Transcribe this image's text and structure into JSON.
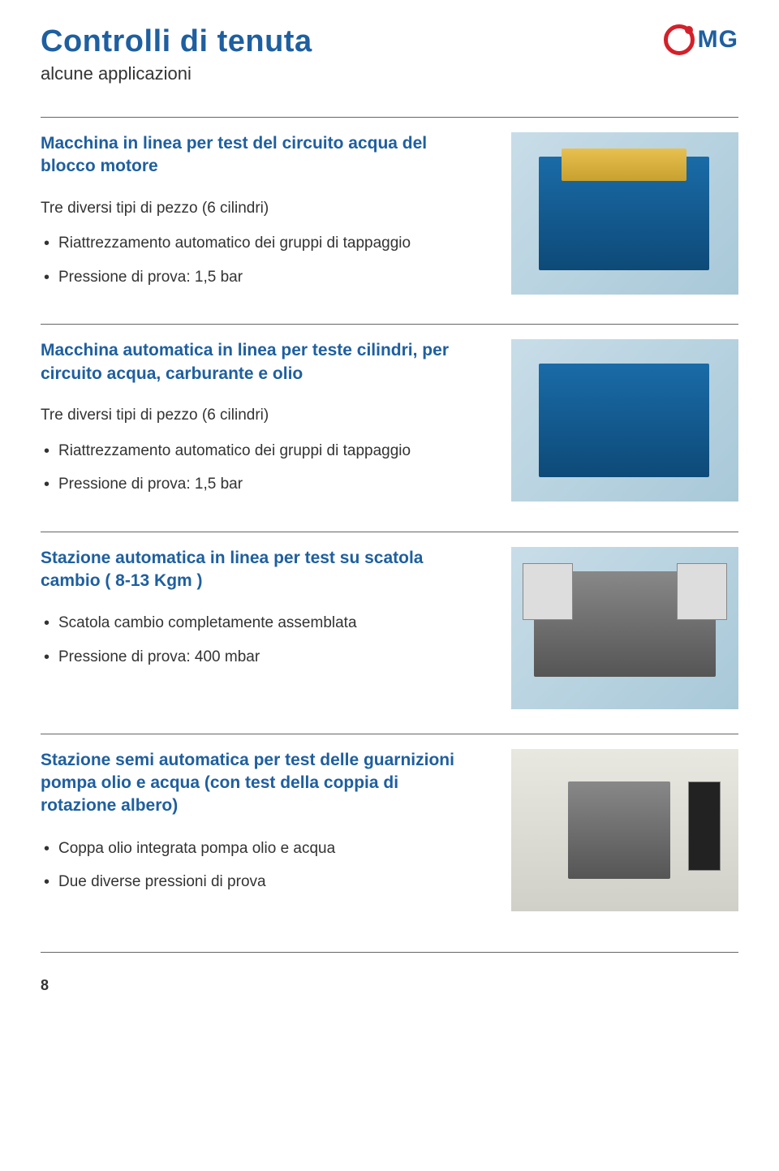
{
  "header": {
    "title": "Controlli di tenuta",
    "subtitle": "alcune applicazioni",
    "logo_text": "MG"
  },
  "sections": [
    {
      "title": "Macchina in linea per test del circuito acqua del blocco motore",
      "description": "Tre diversi tipi di pezzo (6 cilindri)",
      "bullets": [
        "Riattrezzamento automatico dei gruppi di tappaggio",
        "Pressione di prova: 1,5 bar"
      ],
      "image_style": "blue-yellow"
    },
    {
      "title": "Macchina automatica in linea per teste cilindri, per circuito acqua, carburante e olio",
      "description": "Tre diversi tipi di pezzo (6 cilindri)",
      "bullets": [
        "Riattrezzamento automatico dei gruppi di tappaggio",
        "Pressione di prova: 1,5 bar"
      ],
      "image_style": "blue"
    },
    {
      "title": "Stazione automatica in linea per test su scatola cambio ( 8-13 Kgm )",
      "description": "",
      "bullets": [
        "Scatola cambio completamente assemblata",
        "Pressione di prova: 400  mbar"
      ],
      "image_style": "gray-panels"
    },
    {
      "title": "Stazione semi automatica per test delle guarnizioni pompa olio e acqua (con test della coppia di rotazione albero)",
      "description": "",
      "bullets": [
        "Coppa olio integrata pompa olio e acqua",
        "Due diverse pressioni di prova"
      ],
      "image_style": "gray-light"
    }
  ],
  "page_number": "8",
  "colors": {
    "title_blue": "#1e5fa0",
    "logo_red": "#d4202a",
    "text": "#333333",
    "divider": "#666666"
  }
}
